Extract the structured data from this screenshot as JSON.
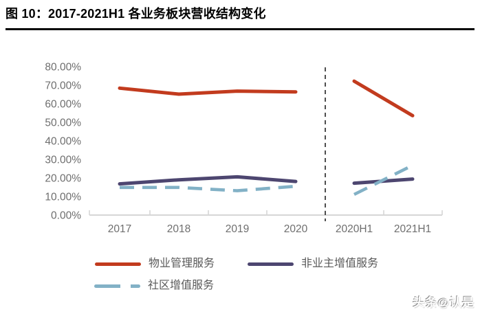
{
  "figure": {
    "title": "图 10：2017-2021H1 各业务板块营收结构变化"
  },
  "watermark": "头条@认是",
  "colors": {
    "property_mgmt": "#C23B1E",
    "non_owner_vas": "#4D4670",
    "community_vas": "#82B1C6",
    "axis_text": "#6E6E6E",
    "axis_line": "#D6D6D6",
    "separator": "#3A3A3A"
  },
  "chart_data": {
    "type": "line",
    "title": "2017-2021H1 各业务板块营收结构变化",
    "categories": [
      "2017",
      "2018",
      "2019",
      "2020",
      "2020H1",
      "2021H1"
    ],
    "series": [
      {
        "name": "物业管理服务",
        "style": "solid",
        "color_key": "property_mgmt",
        "values": [
          68.4,
          65.2,
          66.8,
          66.4,
          72.2,
          53.6
        ]
      },
      {
        "name": "非业主增值服务",
        "style": "solid",
        "color_key": "non_owner_vas",
        "values": [
          16.8,
          19.0,
          20.6,
          18.1,
          17.2,
          19.4
        ]
      },
      {
        "name": "社区增值服务",
        "style": "dashed",
        "color_key": "community_vas",
        "values": [
          14.9,
          14.9,
          13.1,
          15.5,
          11.1,
          26.8
        ]
      }
    ],
    "y_ticks": [
      "80.00%",
      "70.00%",
      "60.00%",
      "50.00%",
      "40.00%",
      "30.00%",
      "20.00%",
      "10.00%",
      "0.00%"
    ],
    "ylim": [
      0,
      80
    ],
    "xlabel": "",
    "ylabel": "",
    "grid": false,
    "separator_after_index": 3,
    "separator_style": "dashed-vertical-line",
    "legend_position": "bottom-left"
  }
}
